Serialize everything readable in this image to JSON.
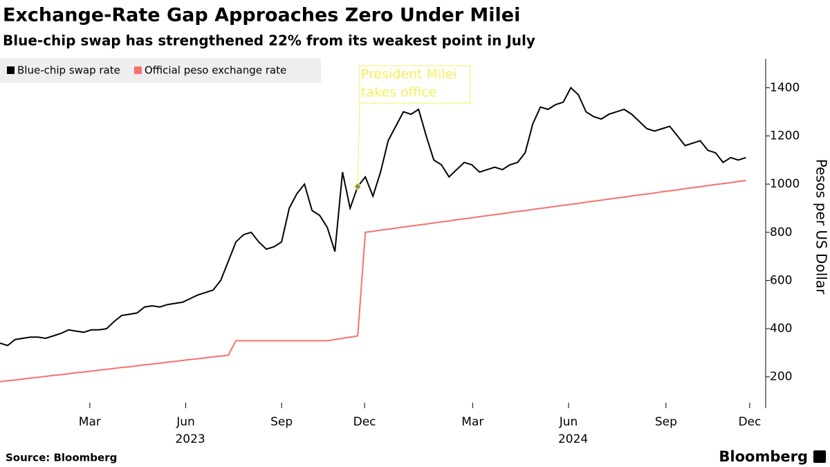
{
  "chart_data": {
    "type": "line",
    "title": "Exchange-Rate Gap Approaches Zero Under Milei",
    "subtitle": "Blue-chip swap has strengthened 22% from its weakest point in July",
    "y_label": "Pesos per US Dollar",
    "source": "Source: Bloomberg",
    "logo": "Bloomberg",
    "x": [
      0,
      1,
      2,
      3,
      4,
      5,
      6,
      7,
      8,
      9,
      10,
      11,
      12,
      13,
      14,
      15,
      16,
      17,
      18,
      19,
      20,
      21,
      22,
      23,
      24,
      25,
      26,
      27,
      28,
      29,
      30,
      31,
      32,
      33,
      34,
      35,
      36,
      37,
      38,
      39,
      40,
      41,
      42,
      43,
      44,
      45,
      46,
      47,
      48,
      49,
      50,
      51,
      52,
      53,
      54,
      55,
      56,
      57,
      58,
      59,
      60,
      61,
      62,
      63,
      64,
      65,
      66,
      67,
      68,
      69,
      70,
      71,
      72,
      73,
      74,
      75,
      76,
      77,
      78,
      79,
      80,
      81,
      82,
      83,
      84,
      85,
      86,
      87,
      88,
      89,
      90,
      91,
      92,
      93,
      94,
      95,
      96,
      97,
      98
    ],
    "series": [
      {
        "name": "Blue-chip swap rate",
        "color": "#000000",
        "values": [
          340,
          330,
          355,
          360,
          365,
          365,
          360,
          370,
          380,
          395,
          390,
          385,
          395,
          395,
          400,
          430,
          455,
          460,
          465,
          490,
          495,
          490,
          500,
          505,
          510,
          525,
          540,
          550,
          560,
          600,
          680,
          760,
          790,
          800,
          760,
          730,
          740,
          760,
          900,
          960,
          1000,
          890,
          870,
          820,
          720,
          1050,
          900,
          990,
          1030,
          950,
          1050,
          1180,
          1240,
          1300,
          1290,
          1310,
          1200,
          1100,
          1080,
          1030,
          1060,
          1090,
          1080,
          1050,
          1060,
          1070,
          1060,
          1080,
          1090,
          1130,
          1250,
          1320,
          1310,
          1330,
          1340,
          1400,
          1370,
          1300,
          1280,
          1270,
          1290,
          1300,
          1310,
          1290,
          1260,
          1230,
          1220,
          1230,
          1240,
          1200,
          1160,
          1170,
          1180,
          1140,
          1130,
          1090,
          1110,
          1100,
          1110
        ]
      },
      {
        "name": "Official peso exchange rate",
        "color": "#f4716e",
        "values": [
          180,
          184,
          187,
          191,
          195,
          198,
          202,
          206,
          209,
          213,
          217,
          220,
          224,
          228,
          231,
          235,
          239,
          242,
          246,
          250,
          253,
          257,
          261,
          264,
          268,
          272,
          275,
          279,
          283,
          286,
          290,
          350,
          350,
          350,
          350,
          350,
          350,
          350,
          350,
          350,
          350,
          350,
          350,
          350,
          355,
          360,
          365,
          370,
          800,
          804,
          809,
          813,
          817,
          822,
          826,
          830,
          834,
          839,
          843,
          847,
          852,
          856,
          860,
          865,
          869,
          873,
          877,
          882,
          886,
          890,
          895,
          899,
          903,
          908,
          912,
          916,
          920,
          925,
          929,
          933,
          938,
          942,
          946,
          951,
          955,
          959,
          963,
          968,
          972,
          976,
          981,
          985,
          989,
          994,
          998,
          1002,
          1006,
          1011,
          1015
        ]
      }
    ],
    "xlim": [
      0,
      100.6
    ],
    "xticks": [
      {
        "value": 11.8,
        "label": "Mar"
      },
      {
        "value": 24.4,
        "label": "Jun"
      },
      {
        "value": 37,
        "label": "Sep"
      },
      {
        "value": 47.9,
        "label": "Dec"
      },
      {
        "value": 62.1,
        "label": "Mar"
      },
      {
        "value": 74.7,
        "label": "Jun"
      },
      {
        "value": 87.5,
        "label": "Sep"
      },
      {
        "value": 98.5,
        "label": "Dec"
      }
    ],
    "xyears": [
      {
        "value": 25,
        "label": "2023"
      },
      {
        "value": 75.3,
        "label": "2024"
      }
    ],
    "ylim": [
      70,
      1520
    ],
    "yticks": [
      200,
      400,
      600,
      800,
      1000,
      1200,
      1400
    ],
    "annotation": {
      "lines": [
        "President Milei",
        "takes office"
      ],
      "x": 47,
      "y": 990
    }
  }
}
